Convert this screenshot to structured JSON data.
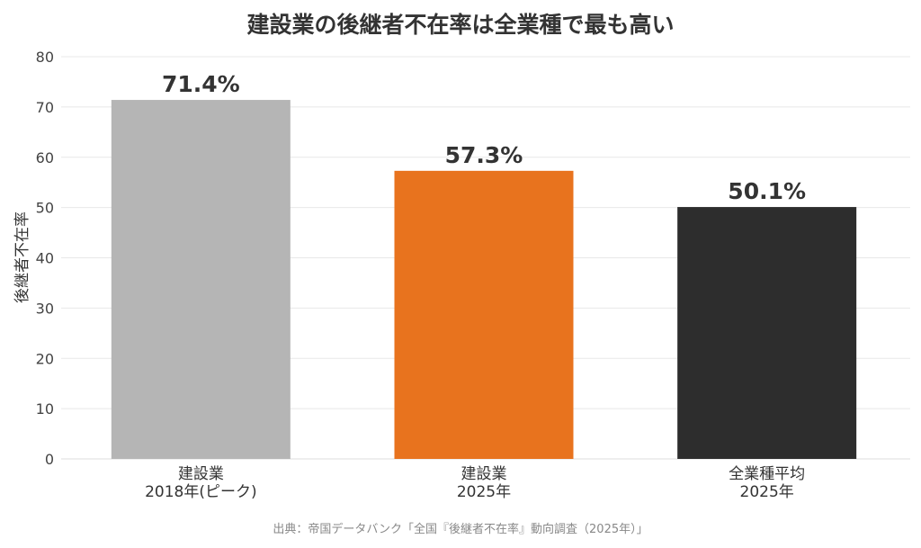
{
  "chart_data": {
    "type": "bar",
    "title": "建設業の後継者不在率は全業種で最も高い",
    "xlabel": "",
    "ylabel": "後継者不在率",
    "ylim": [
      0,
      80
    ],
    "yticks": [
      0,
      10,
      20,
      30,
      40,
      50,
      60,
      70,
      80
    ],
    "grid": true,
    "categories": [
      [
        "建設業",
        "2018年(ピーク)"
      ],
      [
        "建設業",
        "2025年"
      ],
      [
        "全業種平均",
        "2025年"
      ]
    ],
    "values": [
      71.4,
      57.3,
      50.1
    ],
    "value_labels": [
      "71.4%",
      "57.3%",
      "50.1%"
    ],
    "colors": [
      "#b5b5b5",
      "#e8731e",
      "#2d2d2d"
    ],
    "source": "出典：帝国データバンク「全国『後継者不在率』動向調査（2025年）」"
  }
}
